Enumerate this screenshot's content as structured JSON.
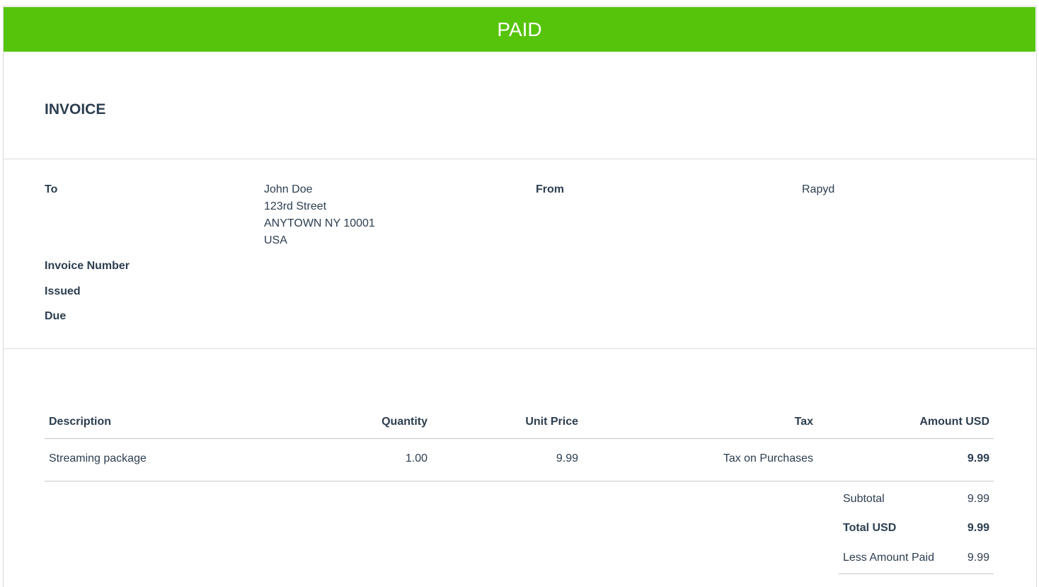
{
  "banner": {
    "status": "PAID"
  },
  "header": {
    "title": "INVOICE"
  },
  "details": {
    "to_label": "To",
    "to_lines": [
      "John Doe",
      "123rd Street",
      "ANYTOWN NY 10001",
      "USA"
    ],
    "from_label": "From",
    "from_name": "Rapyd",
    "invoice_number_label": "Invoice Number",
    "issued_label": "Issued",
    "due_label": "Due"
  },
  "table": {
    "columns": [
      "Description",
      "Quantity",
      "Unit Price",
      "Tax",
      "Amount USD"
    ],
    "rows": [
      [
        "Streaming package",
        "1.00",
        "9.99",
        "Tax on Purchases",
        "9.99"
      ]
    ]
  },
  "totals": [
    {
      "label": "Subtotal",
      "value": "9.99"
    },
    {
      "label": "Total USD",
      "value": "9.99"
    },
    {
      "label": "Less Amount Paid",
      "value": "9.99"
    }
  ]
}
